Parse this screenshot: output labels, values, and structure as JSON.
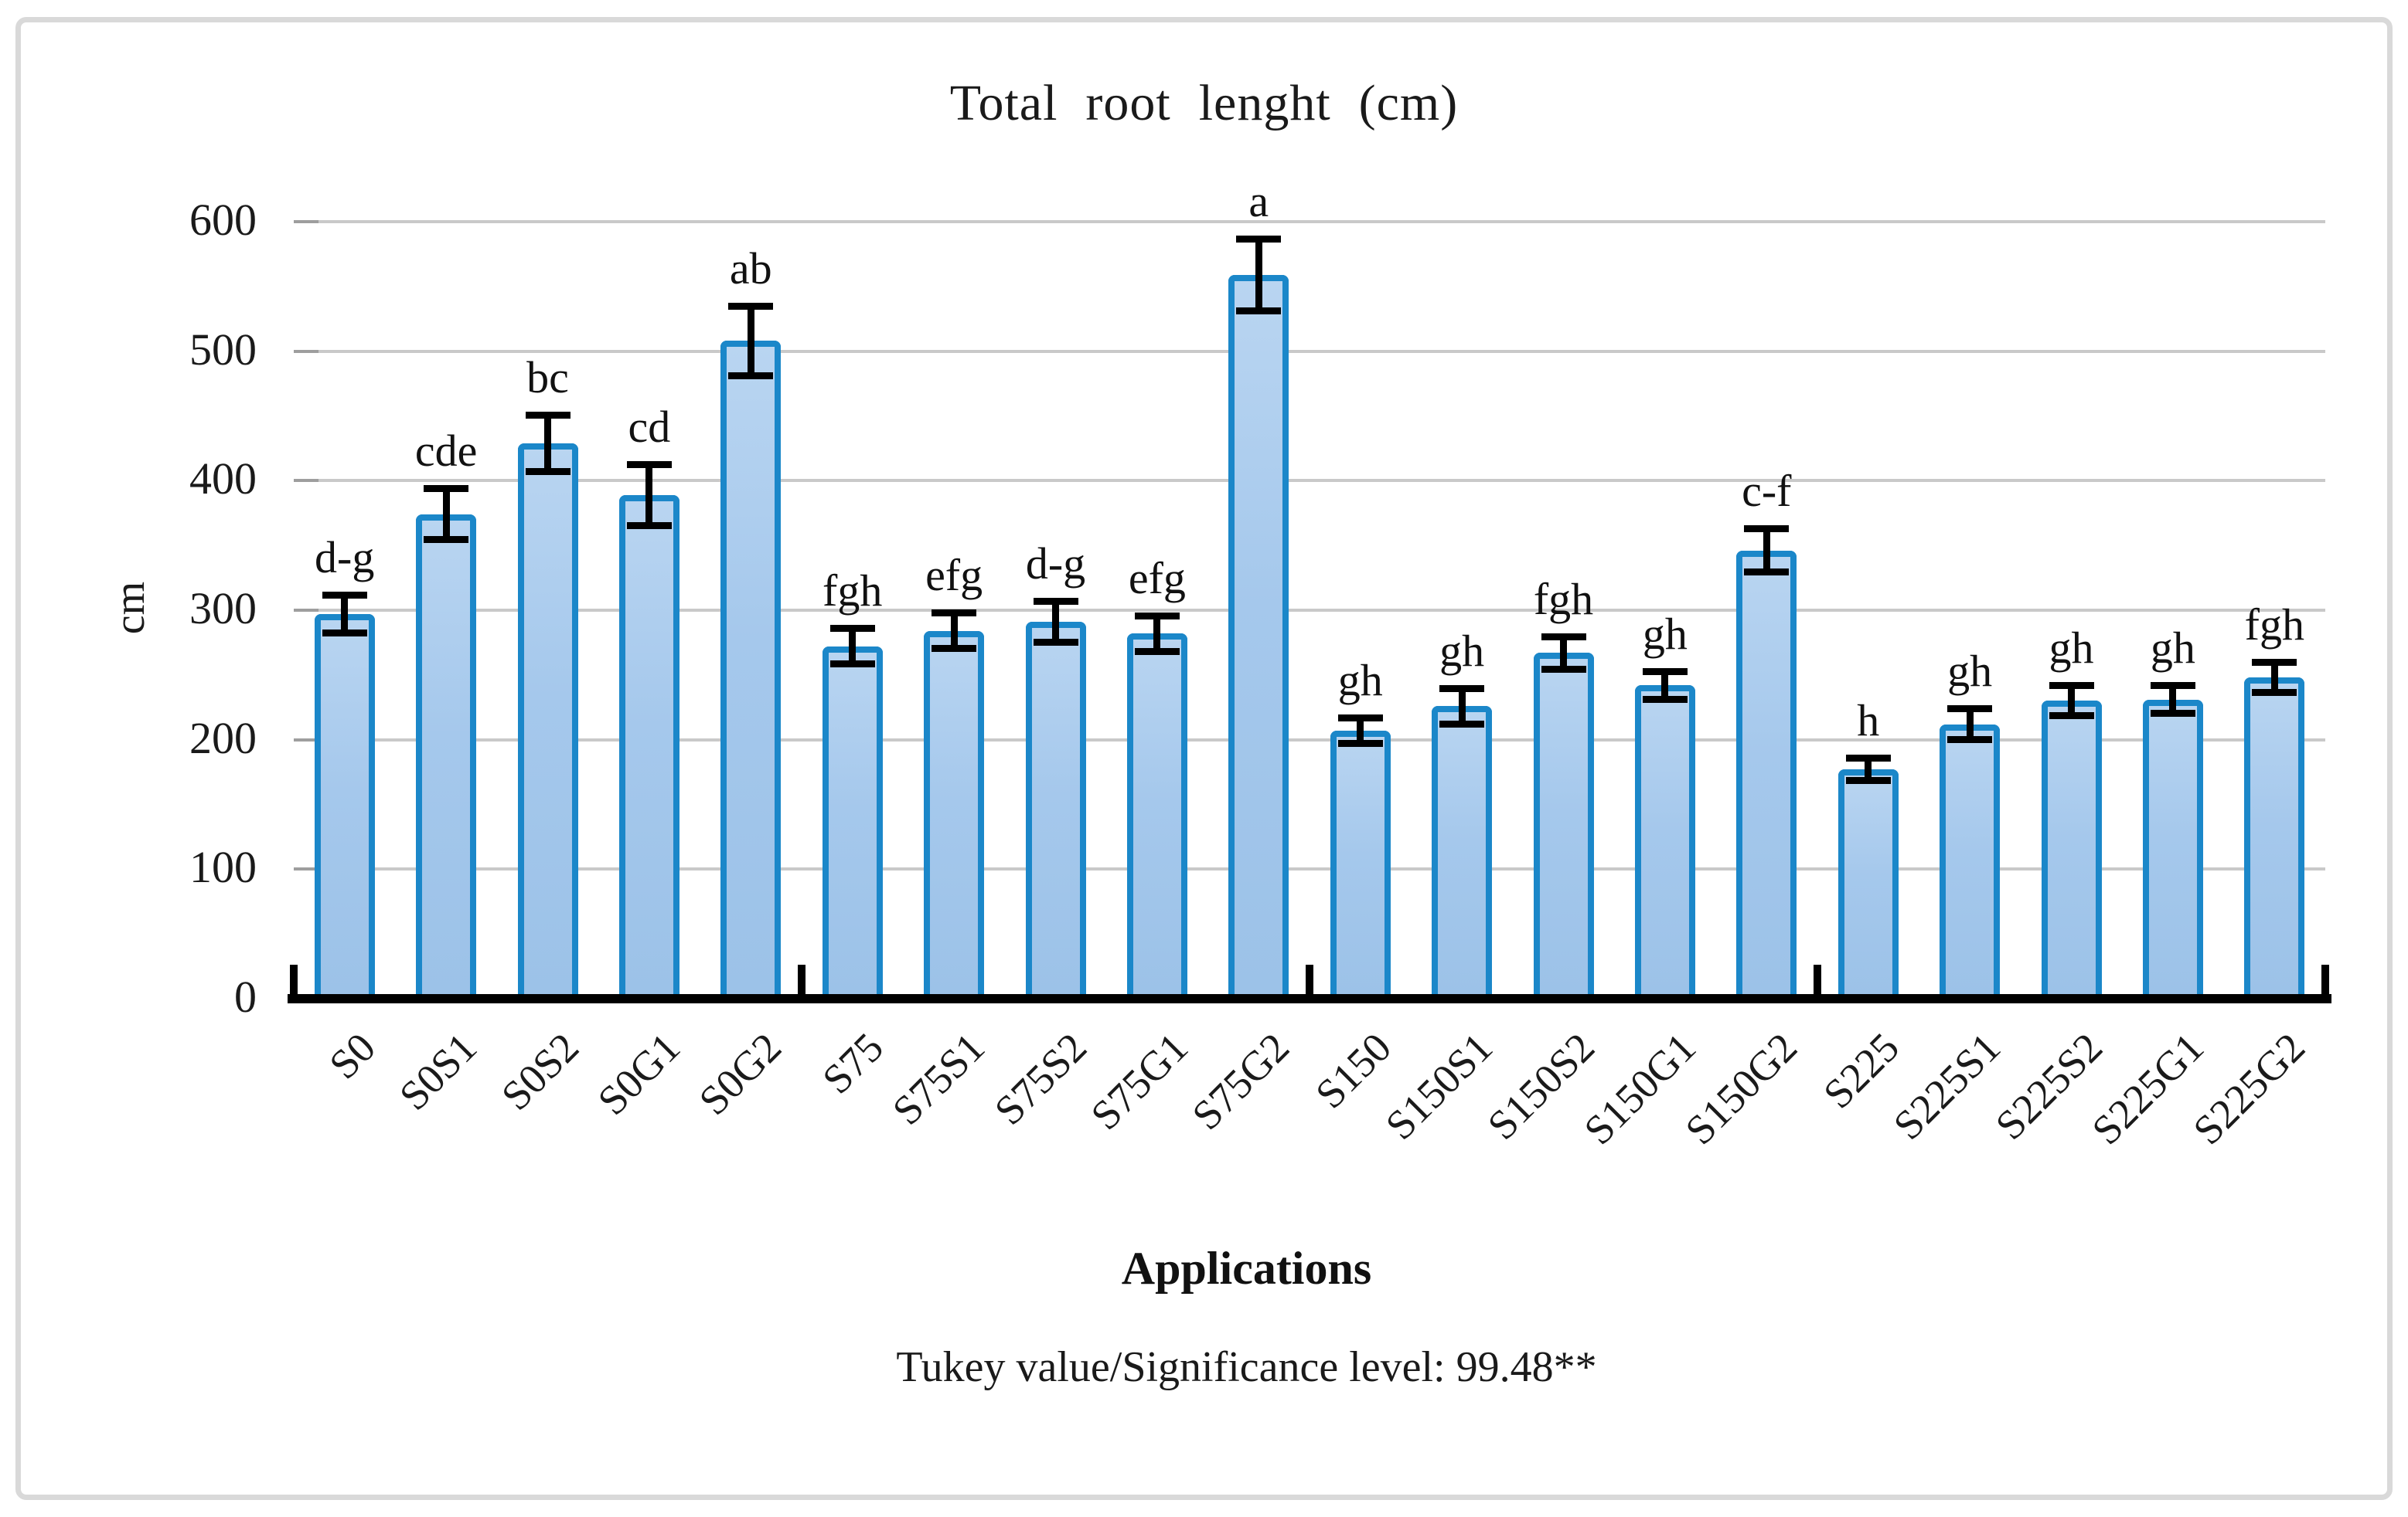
{
  "figure": {
    "title": "Total root lenght  (cm)",
    "y_axis": {
      "label": "cm"
    },
    "x_axis": {
      "label": "Applications"
    },
    "note": "Tukey value/Significance level: 99.48**"
  },
  "chart_data": {
    "type": "bar",
    "title": "Total root lenght  (cm)",
    "xlabel": "Applications",
    "ylabel": "cm",
    "ylim": [
      0,
      600
    ],
    "y_ticks": [
      0,
      100,
      200,
      300,
      400,
      500,
      600
    ],
    "grid": true,
    "legend": "none",
    "annotation": "Tukey value/Significance level: 99.48**",
    "categories": [
      "S0",
      "S0S1",
      "S0S2",
      "S0G1",
      "S0G2",
      "S75",
      "S75S1",
      "S75S2",
      "S75G1",
      "S75G2",
      "S150",
      "S150S1",
      "S150S2",
      "S150G1",
      "S150G2",
      "S225",
      "S225S1",
      "S225S2",
      "S225G1",
      "S225G2"
    ],
    "values": [
      297,
      374,
      429,
      389,
      508,
      272,
      284,
      291,
      282,
      559,
      207,
      226,
      267,
      242,
      346,
      177,
      212,
      230,
      231,
      248
    ],
    "error_bars": [
      15,
      20,
      22,
      24,
      27,
      14,
      14,
      16,
      14,
      28,
      10,
      14,
      13,
      11,
      17,
      9,
      12,
      12,
      11,
      12
    ],
    "sig_letters": [
      "d-g",
      "cde",
      "bc",
      "cd",
      "ab",
      "fgh",
      "efg",
      "d-g",
      "efg",
      "a",
      "gh",
      "gh",
      "fgh",
      "gh",
      "c-f",
      "h",
      "gh",
      "gh",
      "gh",
      "fgh"
    ],
    "group_size": 5,
    "colors": {
      "bar_fill": "#a5c8ec",
      "bar_border": "#1b87c9",
      "gridline": "#c9c9c9",
      "axis": "#000000",
      "frame_border": "#d9d9d9",
      "text": "#1a1a1a"
    }
  }
}
